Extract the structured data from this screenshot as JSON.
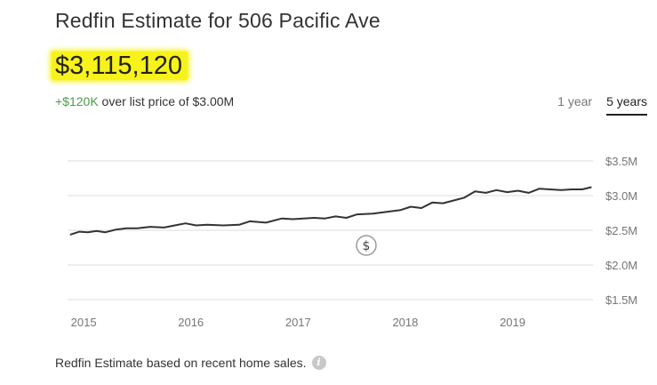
{
  "header": {
    "title": "Redfin Estimate for 506 Pacific Ave",
    "estimate": "$3,115,120",
    "delta": "+$120K",
    "delta_text": " over list price of $3.00M"
  },
  "range_tabs": [
    "1 year",
    "5 years"
  ],
  "active_range": "5 years",
  "footnote": "Redfin Estimate based on recent home sales.",
  "colors": {
    "line": "#333333",
    "delta": "#4a9d45",
    "highlight": "#f7f21a",
    "grid": "#dddddd"
  },
  "marker_icon": "dollar-sign-icon",
  "info_icon": "info-icon",
  "chart_data": {
    "type": "line",
    "ylim": [
      1.5,
      3.5
    ],
    "y_ticks": [
      3.5,
      3.0,
      2.5,
      2.0,
      1.5
    ],
    "y_tick_labels": [
      "$3.5M",
      "$3.0M",
      "$2.5M",
      "$2.0M",
      "$1.5M"
    ],
    "x_ticks": [
      2015,
      2016,
      2017,
      2018,
      2019
    ],
    "x_tick_labels": [
      "2015",
      "2016",
      "2017",
      "2018",
      "2019"
    ],
    "xlim": [
      2014.85,
      2019.75
    ],
    "grid": true,
    "series": [
      {
        "x": [
          2014.88,
          2014.96,
          2015.04,
          2015.12,
          2015.2,
          2015.3,
          2015.4,
          2015.5,
          2015.62,
          2015.75,
          2015.85,
          2015.95,
          2016.05,
          2016.15,
          2016.3,
          2016.45,
          2016.55,
          2016.7,
          2016.85,
          2016.95,
          2017.05,
          2017.15,
          2017.25,
          2017.35,
          2017.45,
          2017.55,
          2017.7,
          2017.85,
          2017.95,
          2018.05,
          2018.15,
          2018.25,
          2018.35,
          2018.45,
          2018.55,
          2018.65,
          2018.75,
          2018.85,
          2018.95,
          2019.05,
          2019.15,
          2019.25,
          2019.35,
          2019.45,
          2019.55,
          2019.65,
          2019.73
        ],
        "y": [
          2.44,
          2.48,
          2.47,
          2.49,
          2.47,
          2.51,
          2.53,
          2.53,
          2.55,
          2.54,
          2.57,
          2.6,
          2.57,
          2.58,
          2.57,
          2.58,
          2.63,
          2.61,
          2.67,
          2.66,
          2.67,
          2.68,
          2.67,
          2.7,
          2.68,
          2.73,
          2.74,
          2.77,
          2.79,
          2.84,
          2.82,
          2.9,
          2.89,
          2.93,
          2.97,
          3.06,
          3.04,
          3.08,
          3.05,
          3.07,
          3.04,
          3.1,
          3.09,
          3.08,
          3.09,
          3.09,
          3.12
        ]
      }
    ]
  }
}
